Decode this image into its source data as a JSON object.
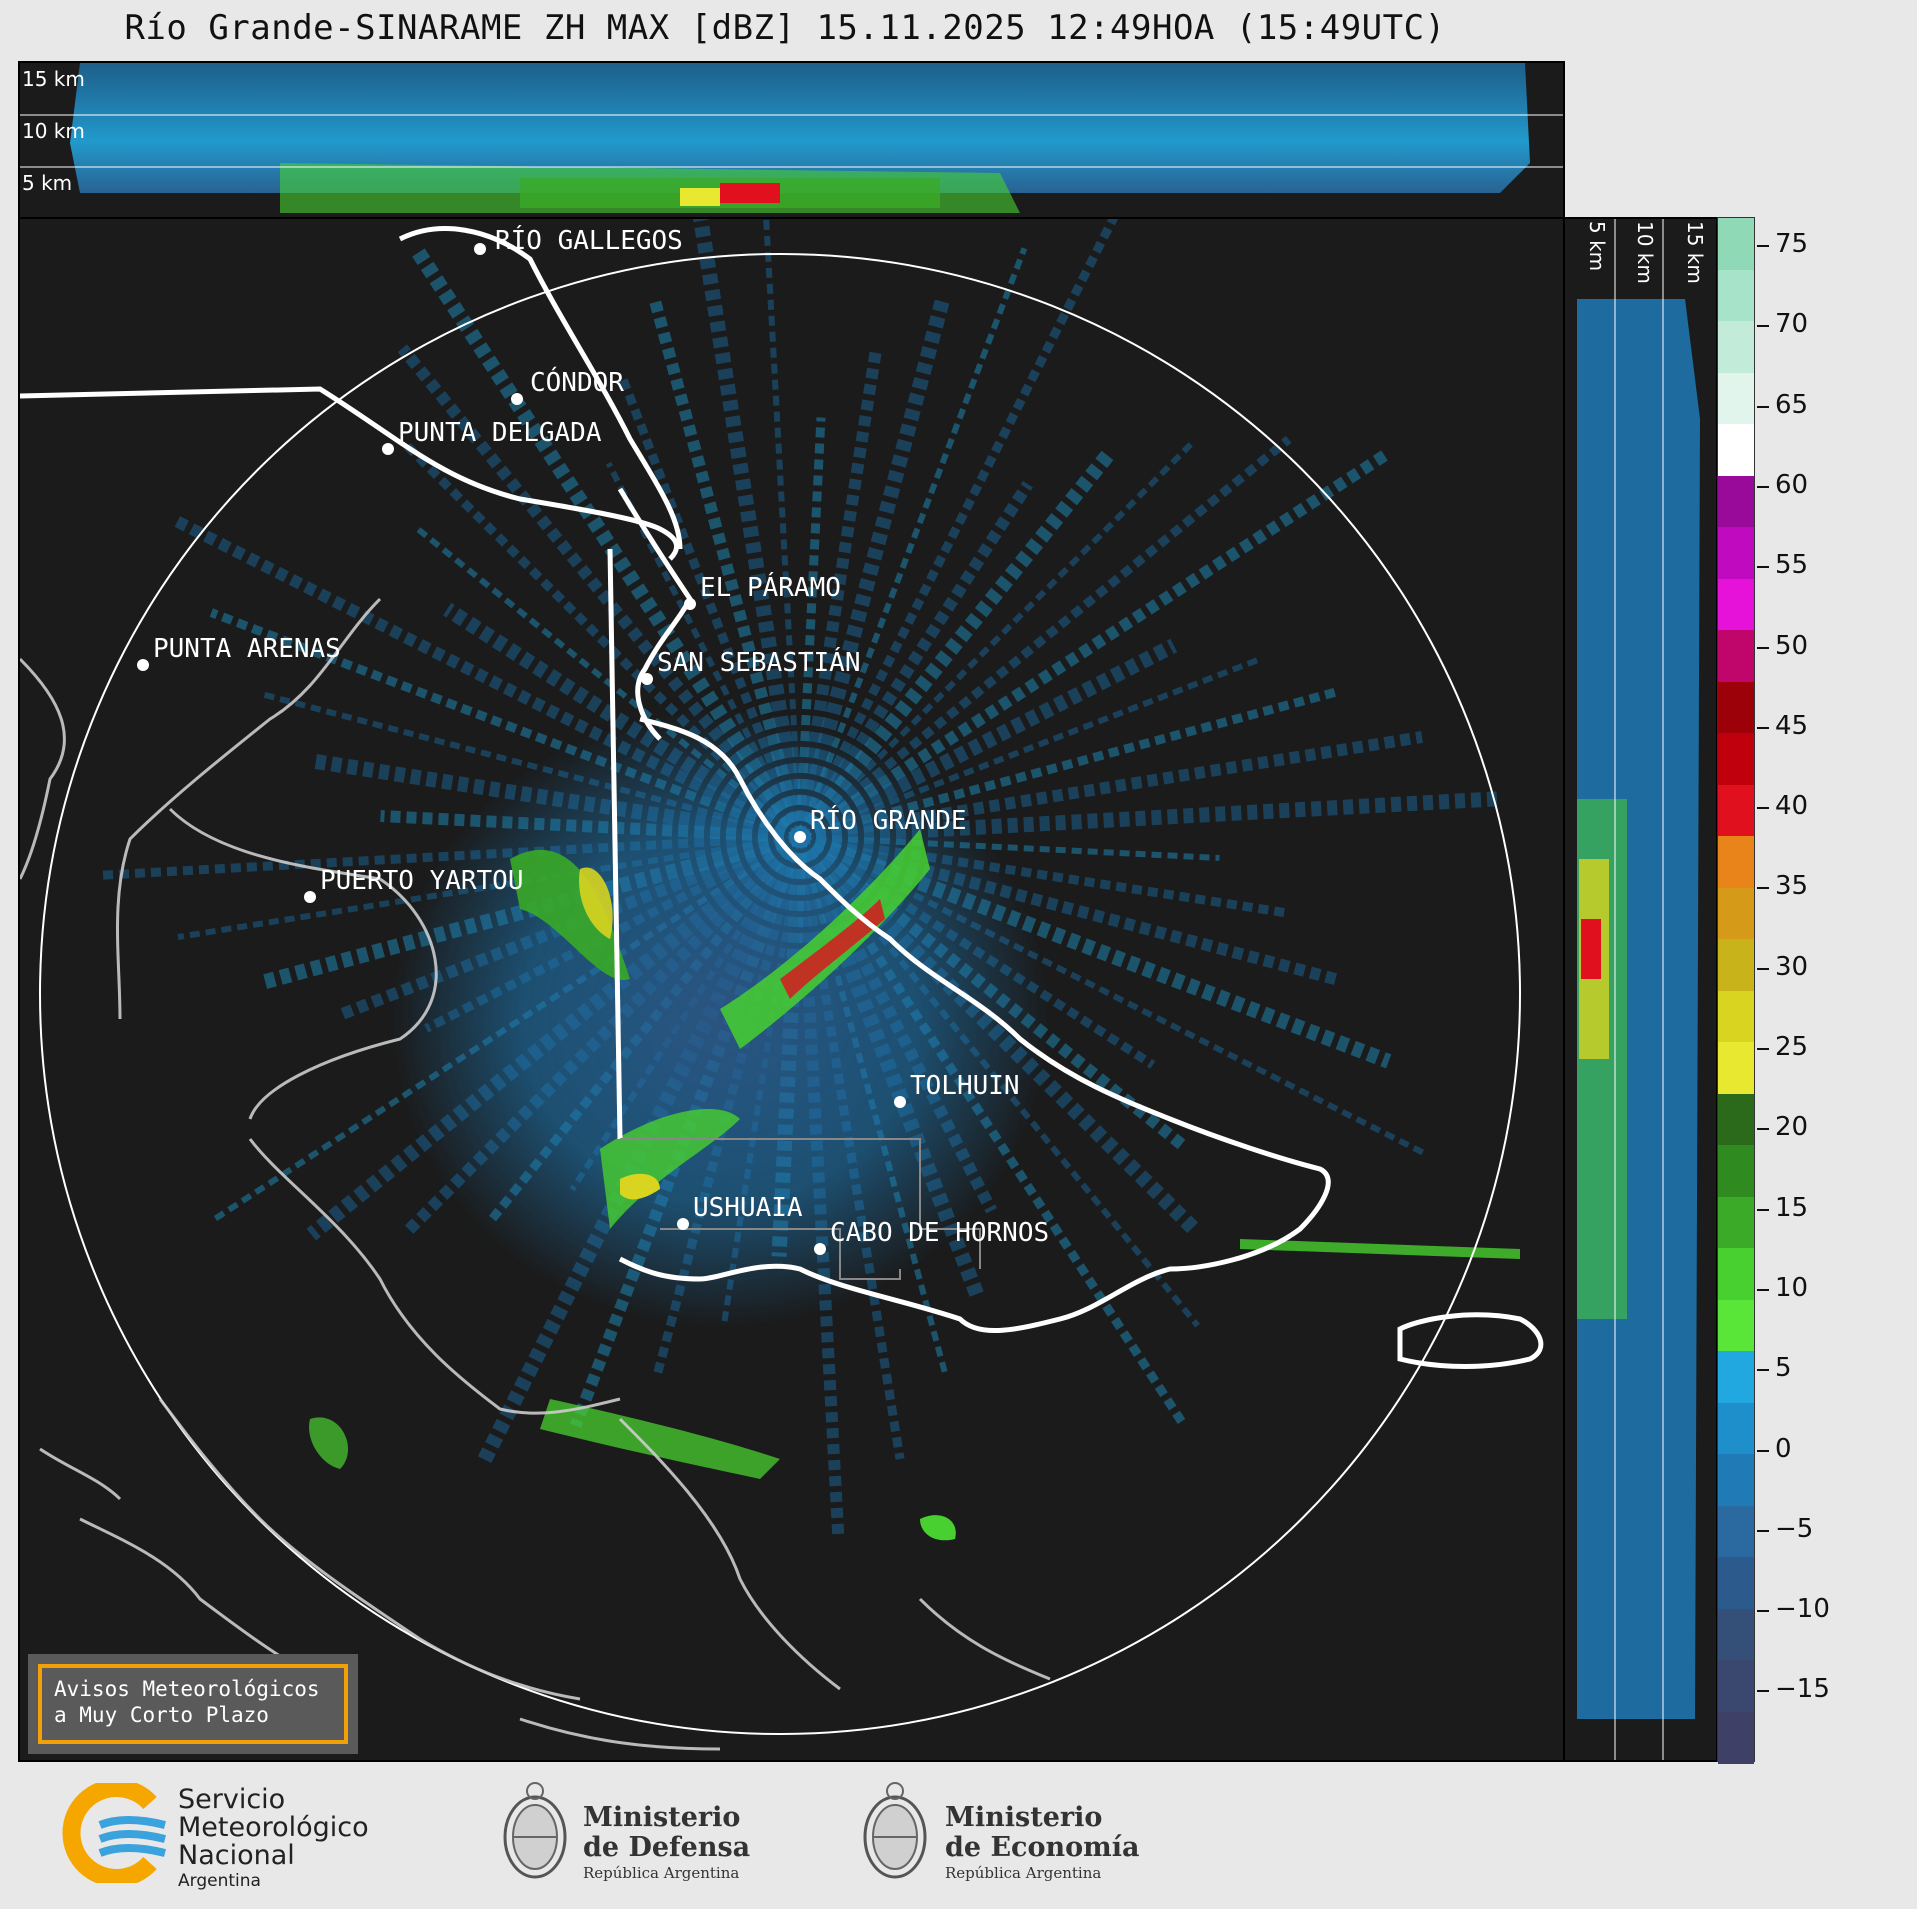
{
  "title": "Río Grande-SINARAME ZH MAX [dBZ] 15.11.2025 12:49HOA (15:49UTC)",
  "top_panel": {
    "altitudes": [
      "15 km",
      "10 km",
      "5 km"
    ]
  },
  "side_panel": {
    "altitudes": [
      "5 km",
      "10 km",
      "15 km"
    ]
  },
  "colorbar": {
    "ticks": [
      "75",
      "70",
      "65",
      "60",
      "55",
      "50",
      "45",
      "40",
      "35",
      "30",
      "25",
      "20",
      "15",
      "10",
      "5",
      "0",
      "−5",
      "−10",
      "−15"
    ],
    "colors": [
      "#8fd9b7",
      "#a6e3c8",
      "#c2ecd9",
      "#e1f5ec",
      "#ffffff",
      "#9a0a9a",
      "#c00ac0",
      "#e612d9",
      "#c0066a",
      "#9c0008",
      "#c0000c",
      "#e0101e",
      "#e8841a",
      "#d49a18",
      "#c8b41a",
      "#d8d420",
      "#e8e830",
      "#2a6a1a",
      "#2f8a20",
      "#3aaa28",
      "#48d030",
      "#5ae638",
      "#22a8e0",
      "#1f8fcc",
      "#1f7ab6",
      "#2a6aa0",
      "#2d5a8c",
      "#345078",
      "#3a4870",
      "#3e4068"
    ]
  },
  "cities": [
    {
      "name": "RÍO GALLEGOS"
    },
    {
      "name": "CÓNDOR"
    },
    {
      "name": "PUNTA DELGADA"
    },
    {
      "name": "PUNTA ARENAS"
    },
    {
      "name": "EL PÁRAMO"
    },
    {
      "name": "SAN SEBASTIÁN"
    },
    {
      "name": "RÍO GRANDE"
    },
    {
      "name": "PUERTO YARTOU"
    },
    {
      "name": "TOLHUIN"
    },
    {
      "name": "USHUAIA"
    },
    {
      "name": "CABO DE HORNOS"
    }
  ],
  "legend": {
    "line1": "Avisos Meteorológicos",
    "line2": "a Muy Corto Plazo"
  },
  "footer": {
    "smn": {
      "line1": "Servicio",
      "line2": "Meteorológico",
      "line3": "Nacional",
      "line4": "Argentina"
    },
    "defensa": {
      "line1": "Ministerio",
      "line2": "de Defensa",
      "line3": "República Argentina"
    },
    "economia": {
      "line1": "Ministerio",
      "line2": "de Economía",
      "line3": "República Argentina"
    }
  },
  "colors": {
    "background": "#1b1b1b",
    "coast": "#cccccc",
    "border": "#ffffff",
    "accent": "#f2a007"
  }
}
